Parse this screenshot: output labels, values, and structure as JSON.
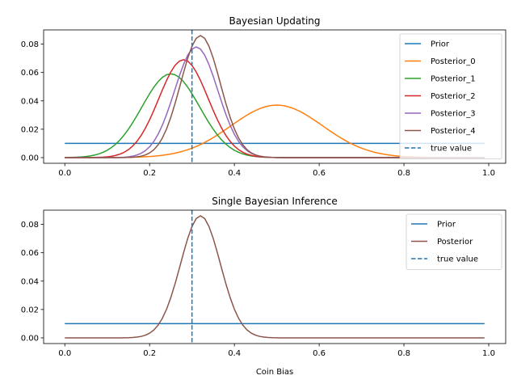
{
  "chart_data": [
    {
      "type": "line",
      "title": "Bayesian Updating",
      "xlabel": "",
      "ylabel": "",
      "xlim": [
        -0.05,
        1.04
      ],
      "ylim": [
        -0.004,
        0.09
      ],
      "xticks": [
        0.0,
        0.2,
        0.4,
        0.6,
        0.8,
        1.0
      ],
      "xtick_labels": [
        "0.0",
        "0.2",
        "0.4",
        "0.6",
        "0.8",
        "1.0"
      ],
      "yticks": [
        0.0,
        0.02,
        0.04,
        0.06,
        0.08
      ],
      "ytick_labels": [
        "0.00",
        "0.02",
        "0.04",
        "0.06",
        "0.08"
      ],
      "grid": false,
      "legend_position": "top-right",
      "true_value": 0.3,
      "true_value_label": "true value",
      "true_value_color": "#1f77b4",
      "x_range": [
        0.0,
        0.99
      ],
      "series": [
        {
          "name": "Prior",
          "color": "#1f77b4",
          "kind": "constant",
          "value": 0.01
        },
        {
          "name": "Posterior_0",
          "color": "#ff7f0e",
          "kind": "gaussian",
          "mean": 0.5,
          "sd": 0.108,
          "peak": 0.037
        },
        {
          "name": "Posterior_1",
          "color": "#2ca02c",
          "kind": "gaussian",
          "mean": 0.25,
          "sd": 0.068,
          "peak": 0.059
        },
        {
          "name": "Posterior_2",
          "color": "#d62728",
          "kind": "gaussian",
          "mean": 0.28,
          "sd": 0.058,
          "peak": 0.069
        },
        {
          "name": "Posterior_3",
          "color": "#9467bd",
          "kind": "gaussian",
          "mean": 0.31,
          "sd": 0.051,
          "peak": 0.078
        },
        {
          "name": "Posterior_4",
          "color": "#8c564b",
          "kind": "gaussian",
          "mean": 0.32,
          "sd": 0.047,
          "peak": 0.086
        }
      ]
    },
    {
      "type": "line",
      "title": "Single Bayesian Inference",
      "xlabel": "Coin Bias",
      "ylabel": "",
      "xlim": [
        -0.05,
        1.04
      ],
      "ylim": [
        -0.004,
        0.09
      ],
      "xticks": [
        0.0,
        0.2,
        0.4,
        0.6,
        0.8,
        1.0
      ],
      "xtick_labels": [
        "0.0",
        "0.2",
        "0.4",
        "0.6",
        "0.8",
        "1.0"
      ],
      "yticks": [
        0.0,
        0.02,
        0.04,
        0.06,
        0.08
      ],
      "ytick_labels": [
        "0.00",
        "0.02",
        "0.04",
        "0.06",
        "0.08"
      ],
      "grid": false,
      "legend_position": "top-right",
      "true_value": 0.3,
      "true_value_label": "true value",
      "true_value_color": "#1f77b4",
      "x_range": [
        0.0,
        0.99
      ],
      "series": [
        {
          "name": "Prior",
          "color": "#1f77b4",
          "kind": "constant",
          "value": 0.01
        },
        {
          "name": "Posterior",
          "color": "#8c564b",
          "kind": "gaussian",
          "mean": 0.32,
          "sd": 0.047,
          "peak": 0.086
        }
      ]
    }
  ]
}
